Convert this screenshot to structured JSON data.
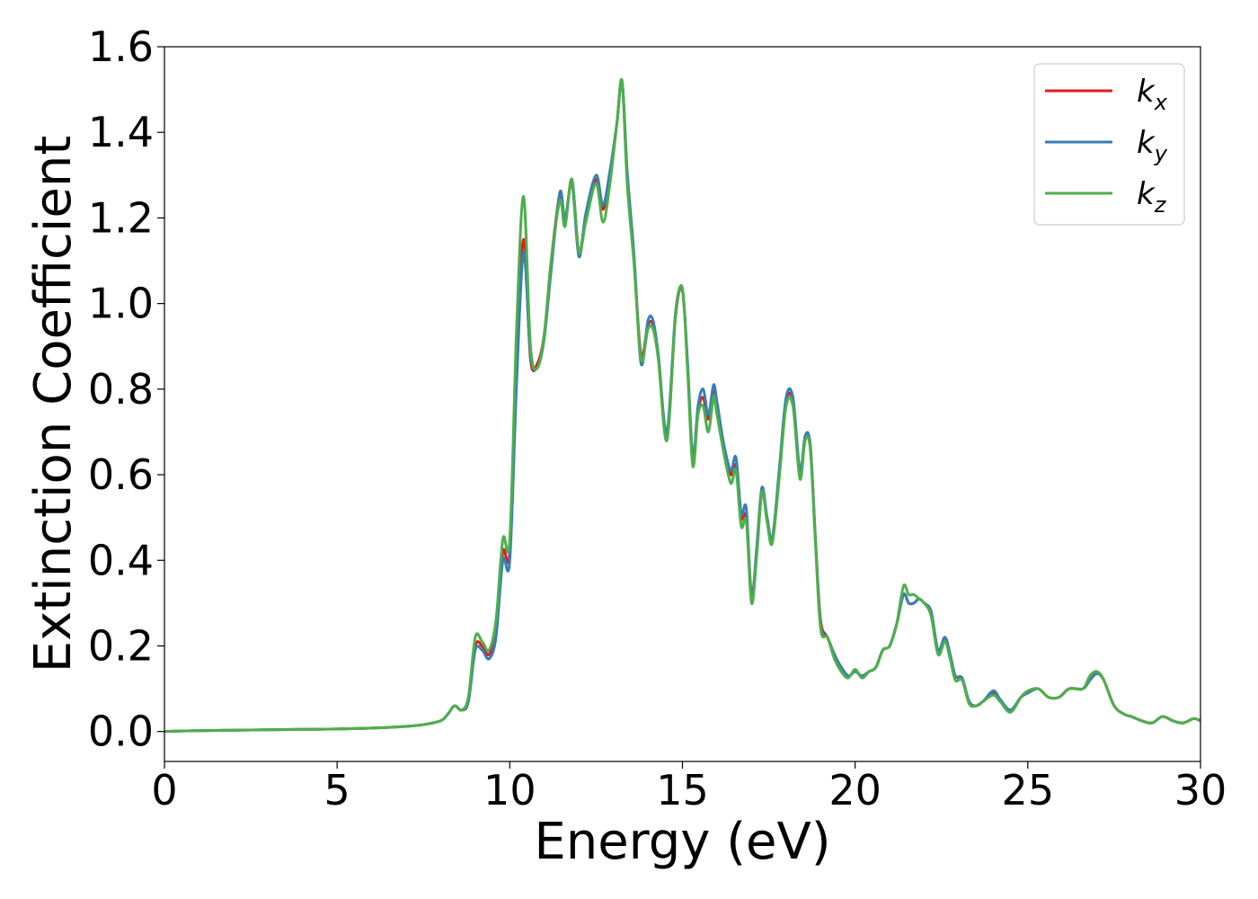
{
  "chart_data": {
    "type": "line",
    "xlabel": "Energy (eV)",
    "ylabel": "Extinction Coefficient",
    "xlim": [
      0,
      30
    ],
    "ylim": [
      -0.07,
      1.6
    ],
    "xticks": [
      0,
      5,
      10,
      15,
      20,
      25,
      30
    ],
    "xtick_labels": [
      "0",
      "5",
      "10",
      "15",
      "20",
      "25",
      "30"
    ],
    "yticks": [
      0.0,
      0.2,
      0.4,
      0.6,
      0.8,
      1.0,
      1.2,
      1.4,
      1.6
    ],
    "ytick_labels": [
      "0.0",
      "0.2",
      "0.4",
      "0.6",
      "0.8",
      "1.0",
      "1.2",
      "1.4",
      "1.6"
    ],
    "grid": false,
    "legend_position": "top-right",
    "series": [
      {
        "name": "k_x",
        "label_base": "k",
        "label_sub": "x",
        "color": "#e41a1c",
        "x": [
          0,
          1,
          2,
          3,
          4,
          5,
          6,
          7,
          7.5,
          8,
          8.2,
          8.4,
          8.6,
          8.8,
          9.0,
          9.2,
          9.4,
          9.6,
          9.8,
          10.0,
          10.2,
          10.4,
          10.6,
          10.8,
          11.0,
          11.2,
          11.45,
          11.6,
          11.8,
          12.0,
          12.2,
          12.5,
          12.7,
          12.9,
          13.1,
          13.25,
          13.4,
          13.6,
          13.8,
          14.0,
          14.15,
          14.3,
          14.55,
          14.8,
          15.0,
          15.15,
          15.3,
          15.45,
          15.6,
          15.75,
          15.9,
          16.0,
          16.2,
          16.4,
          16.55,
          16.7,
          16.85,
          17.0,
          17.15,
          17.3,
          17.45,
          17.6,
          17.8,
          18.0,
          18.2,
          18.4,
          18.55,
          18.7,
          18.85,
          19.0,
          19.2,
          19.4,
          19.6,
          19.8,
          20.0,
          20.2,
          20.4,
          20.6,
          20.8,
          21.0,
          21.2,
          21.4,
          21.55,
          21.7,
          21.85,
          22.0,
          22.2,
          22.4,
          22.6,
          22.75,
          22.9,
          23.1,
          23.3,
          23.5,
          23.7,
          24.0,
          24.2,
          24.5,
          24.8,
          25.0,
          25.3,
          25.6,
          25.9,
          26.2,
          26.6,
          26.8,
          27.0,
          27.2,
          27.5,
          27.8,
          28.0,
          28.3,
          28.6,
          28.9,
          29.2,
          29.5,
          29.8,
          30.0
        ],
        "values": [
          0.0,
          0.002,
          0.003,
          0.004,
          0.005,
          0.006,
          0.008,
          0.012,
          0.016,
          0.025,
          0.04,
          0.06,
          0.05,
          0.07,
          0.2,
          0.2,
          0.18,
          0.24,
          0.42,
          0.42,
          0.85,
          1.15,
          0.87,
          0.86,
          0.93,
          1.1,
          1.255,
          1.19,
          1.29,
          1.12,
          1.2,
          1.29,
          1.22,
          1.3,
          1.42,
          1.52,
          1.3,
          1.1,
          0.88,
          0.95,
          0.95,
          0.88,
          0.69,
          0.97,
          1.03,
          0.85,
          0.64,
          0.75,
          0.78,
          0.73,
          0.8,
          0.76,
          0.66,
          0.6,
          0.62,
          0.5,
          0.5,
          0.32,
          0.42,
          0.56,
          0.5,
          0.45,
          0.6,
          0.77,
          0.77,
          0.6,
          0.68,
          0.67,
          0.45,
          0.26,
          0.22,
          0.18,
          0.15,
          0.13,
          0.14,
          0.13,
          0.14,
          0.15,
          0.19,
          0.2,
          0.25,
          0.32,
          0.3,
          0.3,
          0.31,
          0.3,
          0.28,
          0.19,
          0.22,
          0.18,
          0.13,
          0.12,
          0.07,
          0.06,
          0.07,
          0.09,
          0.07,
          0.05,
          0.08,
          0.09,
          0.1,
          0.08,
          0.08,
          0.1,
          0.1,
          0.13,
          0.14,
          0.12,
          0.06,
          0.04,
          0.035,
          0.025,
          0.02,
          0.035,
          0.025,
          0.02,
          0.03,
          0.025
        ]
      },
      {
        "name": "k_y",
        "label_base": "k",
        "label_sub": "y",
        "color": "#377eb8",
        "x": [
          0,
          1,
          2,
          3,
          4,
          5,
          6,
          7,
          7.5,
          8,
          8.2,
          8.4,
          8.6,
          8.8,
          9.0,
          9.2,
          9.4,
          9.6,
          9.8,
          10.0,
          10.2,
          10.4,
          10.6,
          10.8,
          11.0,
          11.2,
          11.45,
          11.6,
          11.8,
          12.0,
          12.2,
          12.5,
          12.7,
          12.9,
          13.1,
          13.25,
          13.4,
          13.6,
          13.8,
          14.0,
          14.15,
          14.3,
          14.55,
          14.8,
          15.0,
          15.15,
          15.3,
          15.45,
          15.6,
          15.75,
          15.9,
          16.0,
          16.2,
          16.4,
          16.55,
          16.7,
          16.85,
          17.0,
          17.15,
          17.3,
          17.45,
          17.6,
          17.8,
          18.0,
          18.2,
          18.4,
          18.55,
          18.7,
          18.85,
          19.0,
          19.2,
          19.4,
          19.6,
          19.8,
          20.0,
          20.2,
          20.4,
          20.6,
          20.8,
          21.0,
          21.2,
          21.4,
          21.55,
          21.7,
          21.85,
          22.0,
          22.2,
          22.4,
          22.6,
          22.75,
          22.9,
          23.1,
          23.3,
          23.5,
          23.7,
          24.0,
          24.2,
          24.5,
          24.8,
          25.0,
          25.3,
          25.6,
          25.9,
          26.2,
          26.6,
          26.8,
          27.0,
          27.2,
          27.5,
          27.8,
          28.0,
          28.3,
          28.6,
          28.9,
          29.2,
          29.5,
          29.8,
          30.0
        ],
        "values": [
          0.0,
          0.002,
          0.003,
          0.004,
          0.005,
          0.006,
          0.008,
          0.012,
          0.016,
          0.025,
          0.04,
          0.06,
          0.05,
          0.07,
          0.19,
          0.19,
          0.17,
          0.22,
          0.4,
          0.4,
          0.82,
          1.12,
          0.88,
          0.85,
          0.92,
          1.08,
          1.26,
          1.2,
          1.28,
          1.11,
          1.21,
          1.3,
          1.23,
          1.31,
          1.42,
          1.52,
          1.31,
          1.11,
          0.86,
          0.96,
          0.96,
          0.88,
          0.7,
          0.98,
          1.03,
          0.86,
          0.64,
          0.76,
          0.8,
          0.74,
          0.81,
          0.77,
          0.67,
          0.61,
          0.64,
          0.51,
          0.52,
          0.31,
          0.43,
          0.57,
          0.5,
          0.45,
          0.61,
          0.78,
          0.78,
          0.61,
          0.69,
          0.67,
          0.45,
          0.25,
          0.22,
          0.18,
          0.15,
          0.13,
          0.14,
          0.13,
          0.14,
          0.15,
          0.19,
          0.2,
          0.25,
          0.32,
          0.3,
          0.3,
          0.31,
          0.3,
          0.28,
          0.19,
          0.22,
          0.18,
          0.13,
          0.125,
          0.07,
          0.06,
          0.07,
          0.095,
          0.075,
          0.05,
          0.08,
          0.09,
          0.1,
          0.08,
          0.08,
          0.1,
          0.1,
          0.12,
          0.135,
          0.12,
          0.06,
          0.04,
          0.035,
          0.025,
          0.02,
          0.035,
          0.025,
          0.02,
          0.03,
          0.025
        ]
      },
      {
        "name": "k_z",
        "label_base": "k",
        "label_sub": "z",
        "color": "#4daf4a",
        "x": [
          0,
          1,
          2,
          3,
          4,
          5,
          6,
          7,
          7.5,
          8,
          8.2,
          8.4,
          8.6,
          8.8,
          9.0,
          9.2,
          9.4,
          9.6,
          9.8,
          10.0,
          10.2,
          10.4,
          10.6,
          10.8,
          11.0,
          11.2,
          11.45,
          11.6,
          11.8,
          12.0,
          12.2,
          12.5,
          12.7,
          12.9,
          13.1,
          13.25,
          13.4,
          13.6,
          13.8,
          14.0,
          14.15,
          14.3,
          14.55,
          14.8,
          15.0,
          15.15,
          15.3,
          15.45,
          15.6,
          15.75,
          15.9,
          16.0,
          16.2,
          16.4,
          16.55,
          16.7,
          16.85,
          17.0,
          17.15,
          17.3,
          17.45,
          17.6,
          17.8,
          18.0,
          18.2,
          18.4,
          18.55,
          18.7,
          18.85,
          19.0,
          19.2,
          19.4,
          19.6,
          19.8,
          20.0,
          20.2,
          20.4,
          20.6,
          20.8,
          21.0,
          21.2,
          21.4,
          21.55,
          21.7,
          21.85,
          22.0,
          22.2,
          22.4,
          22.6,
          22.75,
          22.9,
          23.1,
          23.3,
          23.5,
          23.7,
          24.0,
          24.2,
          24.5,
          24.8,
          25.0,
          25.3,
          25.6,
          25.9,
          26.2,
          26.6,
          26.8,
          27.0,
          27.2,
          27.5,
          27.8,
          28.0,
          28.3,
          28.6,
          28.9,
          29.2,
          29.5,
          29.8,
          30.0
        ],
        "values": [
          0.0,
          0.002,
          0.003,
          0.004,
          0.005,
          0.006,
          0.008,
          0.012,
          0.016,
          0.025,
          0.04,
          0.06,
          0.05,
          0.08,
          0.22,
          0.21,
          0.19,
          0.26,
          0.45,
          0.45,
          0.95,
          1.25,
          0.9,
          0.85,
          0.93,
          1.1,
          1.24,
          1.18,
          1.29,
          1.12,
          1.19,
          1.28,
          1.19,
          1.28,
          1.42,
          1.52,
          1.28,
          1.09,
          0.87,
          0.94,
          0.94,
          0.87,
          0.68,
          0.97,
          1.035,
          0.84,
          0.62,
          0.74,
          0.76,
          0.7,
          0.78,
          0.74,
          0.65,
          0.58,
          0.61,
          0.48,
          0.49,
          0.3,
          0.41,
          0.56,
          0.49,
          0.44,
          0.59,
          0.76,
          0.76,
          0.59,
          0.68,
          0.66,
          0.44,
          0.24,
          0.22,
          0.17,
          0.14,
          0.125,
          0.145,
          0.125,
          0.14,
          0.15,
          0.19,
          0.2,
          0.25,
          0.34,
          0.32,
          0.32,
          0.31,
          0.3,
          0.27,
          0.18,
          0.21,
          0.17,
          0.12,
          0.12,
          0.065,
          0.06,
          0.07,
          0.085,
          0.07,
          0.045,
          0.08,
          0.095,
          0.1,
          0.08,
          0.08,
          0.1,
          0.1,
          0.13,
          0.14,
          0.12,
          0.06,
          0.04,
          0.035,
          0.025,
          0.02,
          0.035,
          0.025,
          0.02,
          0.03,
          0.025
        ]
      }
    ]
  }
}
